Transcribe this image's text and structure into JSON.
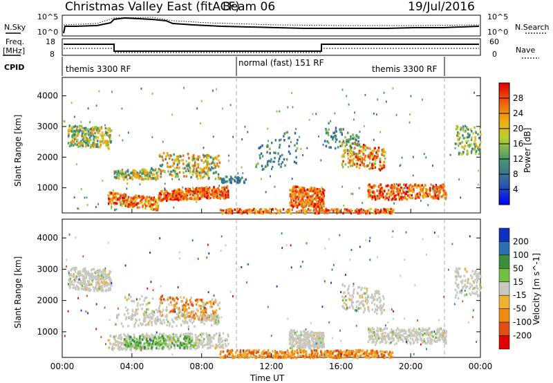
{
  "header": {
    "title": "Christmas Valley East (fitACF)",
    "beam": "Beam 06",
    "date": "19/Jul/2016"
  },
  "top_panels": {
    "nsky_label": "N.Sky",
    "nsky_ticks": [
      "10^5",
      "10^0"
    ],
    "nsearch_label": "N.Search",
    "nsearch_ticks": [
      "10^5",
      "10^0"
    ],
    "freq_label": "Freq.",
    "freq_unit": "[MHz]",
    "freq_ticks": [
      "18",
      "8"
    ],
    "nave_label": "Nave",
    "nave_ticks": [
      "60",
      "0"
    ],
    "cpid_label": "CPID",
    "cpid_segments": [
      {
        "label": "themis 3300 RF",
        "start_h": 0,
        "end_h": 10
      },
      {
        "label": "normal (fast) 151 RF",
        "start_h": 10,
        "end_h": 22
      },
      {
        "label": "themis 3300 RF",
        "start_h": 22,
        "end_h": 24
      }
    ]
  },
  "chart_data": [
    {
      "type": "heatmap",
      "title": "",
      "ylabel": "Slant Range [km]",
      "xlabel": "",
      "ylim": [
        180,
        4600
      ],
      "xlim": [
        0,
        24
      ],
      "yticks": [
        1000,
        2000,
        3000,
        4000
      ],
      "colorbar": {
        "label": "Power [dB]",
        "ticks": [
          4,
          8,
          12,
          16,
          20,
          24,
          28
        ],
        "range": [
          0,
          32
        ]
      },
      "grid": false,
      "features": [
        {
          "x_start": 0.2,
          "x_end": 2.8,
          "range_low": 2300,
          "range_high": 3200,
          "level": "12-24"
        },
        {
          "x_start": 2.5,
          "x_end": 9.5,
          "range_low": 300,
          "range_high": 1000,
          "level": "16-30"
        },
        {
          "x_start": 2.8,
          "x_end": 9.0,
          "range_low": 1200,
          "range_high": 2200,
          "level": "8-24"
        },
        {
          "x_start": 13.0,
          "x_end": 15.0,
          "range_low": 400,
          "range_high": 1100,
          "level": "16-30"
        },
        {
          "x_start": 16.0,
          "x_end": 18.5,
          "range_low": 1600,
          "range_high": 2600,
          "level": "12-28"
        },
        {
          "x_start": 17.5,
          "x_end": 22.0,
          "range_low": 600,
          "range_high": 1200,
          "level": "16-30"
        },
        {
          "x_start": 22.5,
          "x_end": 24.0,
          "range_low": 2000,
          "range_high": 3200,
          "level": "8-20"
        }
      ]
    },
    {
      "type": "heatmap",
      "title": "",
      "ylabel": "Slant Range [km]",
      "xlabel": "Time UT",
      "ylim": [
        180,
        4600
      ],
      "xlim": [
        0,
        24
      ],
      "yticks": [
        1000,
        2000,
        3000,
        4000
      ],
      "xticks": [
        "00:00",
        "04:00",
        "08:00",
        "12:00",
        "16:00",
        "20:00",
        "00:00"
      ],
      "colorbar": {
        "label": "Velocity [m s^-1]",
        "ticks": [
          200,
          100,
          50,
          15,
          -15,
          -50,
          -100,
          -200
        ],
        "range": [
          -250,
          250
        ]
      },
      "grid": false,
      "features": [
        {
          "x_start": 0.2,
          "x_end": 2.8,
          "range_low": 2300,
          "range_high": 3200,
          "velocity": "ground scatter (-15 to 15)"
        },
        {
          "x_start": 2.5,
          "x_end": 9.5,
          "range_low": 300,
          "range_high": 1000,
          "velocity": "ground scatter with 15-50 patches"
        },
        {
          "x_start": 3.5,
          "x_end": 9.0,
          "range_low": 1400,
          "range_high": 2200,
          "velocity": "-15 to -50"
        },
        {
          "x_start": 9.0,
          "x_end": 19.0,
          "range_low": 180,
          "range_high": 450,
          "velocity": "-50 to -100"
        },
        {
          "x_start": 13.0,
          "x_end": 22.0,
          "range_low": 500,
          "range_high": 1200,
          "velocity": "ground scatter (-15 to 15)"
        }
      ]
    }
  ]
}
